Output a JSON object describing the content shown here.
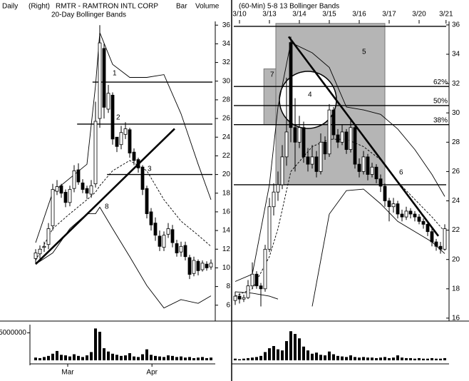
{
  "chart_data": [
    {
      "type": "candlestick",
      "period": "Daily",
      "axis_side": "(Right)",
      "title": "RMTR - RAMTRON INTL CORP",
      "style": "Bar",
      "volume_label": "Volume",
      "subtitle": "20-Day Bollinger Bands",
      "xlim": [
        -1,
        42
      ],
      "xticks": [
        {
          "value": 7.5,
          "label": "Mar"
        },
        {
          "value": 27.2,
          "label": "Apr"
        }
      ],
      "ylim": [
        4.3,
        36.4
      ],
      "yticks": [
        6,
        8,
        10,
        12,
        14,
        16,
        18,
        20,
        22,
        24,
        26,
        28,
        30,
        32,
        34,
        36
      ],
      "open": [
        11,
        11.5,
        12.2,
        12.5,
        14.5,
        18.2,
        18.8,
        18.1,
        17,
        18.5,
        20.5,
        19.1,
        18.5,
        17.9,
        19,
        26,
        33.5,
        27,
        28.5,
        24,
        23.2,
        24.3,
        24.8,
        22.4,
        21.6,
        20.8,
        18.5,
        16,
        14.8,
        13.4,
        12.2,
        13.6,
        14.1,
        12.6,
        11.7,
        12.4,
        11.1,
        9.4,
        10.7,
        9.8,
        10.4,
        10.1
      ],
      "high": [
        12,
        12.4,
        12.8,
        14.8,
        19,
        19.4,
        19,
        18.4,
        18.8,
        21,
        21.2,
        19.5,
        18.8,
        19.4,
        27.8,
        36,
        34,
        29.6,
        28.8,
        24,
        25.2,
        25.6,
        25,
        22.8,
        21.8,
        21,
        18.8,
        16.4,
        15.4,
        14,
        13.9,
        14.8,
        14.6,
        13,
        12.8,
        12.8,
        11.4,
        11.2,
        10.9,
        10.8,
        10.7,
        10.9
      ],
      "low": [
        10.5,
        11,
        11.7,
        12,
        14,
        17.8,
        17.5,
        16.5,
        16.6,
        18.1,
        18.9,
        18,
        17.4,
        17.5,
        18.6,
        25,
        26,
        26.6,
        23.2,
        22.4,
        22.7,
        23.8,
        21.8,
        21,
        20.2,
        17.8,
        15.3,
        14,
        12.9,
        11.8,
        11.8,
        13.2,
        12.2,
        11.2,
        11.2,
        10.8,
        8.8,
        9.1,
        9.2,
        9.6,
        9.7,
        9.8
      ],
      "close": [
        11.6,
        12,
        12.3,
        14.2,
        18.4,
        18.7,
        18,
        17,
        18.4,
        20.4,
        19.2,
        18.4,
        18,
        18.8,
        25.7,
        34.1,
        27.2,
        28.7,
        23.8,
        23,
        24.5,
        24.9,
        22.3,
        21.5,
        20.7,
        18.4,
        15.8,
        14.6,
        13.5,
        12.3,
        13.5,
        14.2,
        12.7,
        11.6,
        12.3,
        11.2,
        9.3,
        10.8,
        9.7,
        10.5,
        10,
        10.5
      ],
      "bands": {
        "x": [
          0,
          4,
          8,
          12,
          14,
          15,
          18,
          22,
          26,
          30,
          34,
          38,
          41
        ],
        "upper": [
          12.7,
          18.1,
          19.6,
          21.1,
          29.5,
          35.2,
          31.8,
          30.4,
          30.4,
          30.7,
          26.5,
          21.1,
          17.3
        ],
        "middle": [
          10.8,
          14.2,
          15.8,
          17.3,
          18.1,
          18.8,
          20.4,
          21.5,
          20.4,
          17.3,
          15,
          13.5,
          12.3
        ],
        "lower": [
          10.4,
          11.6,
          14.2,
          15.8,
          15.8,
          16.5,
          14.2,
          11.2,
          8.1,
          5.7,
          6.6,
          6.2,
          7
        ]
      },
      "volume": {
        "ylim": [
          0,
          6500000
        ],
        "yticks": [
          5000000
        ],
        "values": [
          500000,
          400000,
          600000,
          800000,
          1200000,
          1700000,
          1000000,
          900000,
          700000,
          1100000,
          800000,
          600000,
          900000,
          1500000,
          5800000,
          5200000,
          2200000,
          1600000,
          1200000,
          1000000,
          800000,
          900000,
          1300000,
          700000,
          600000,
          1100000,
          2000000,
          1000000,
          800000,
          700000,
          600000,
          900000,
          800000,
          600000,
          700000,
          500000,
          600000,
          400000,
          500000,
          600000,
          400000,
          500000
        ]
      },
      "hlines": [
        {
          "value": 29.9,
          "start": 13.3,
          "label": "1"
        },
        {
          "value": 25.4,
          "start": 9.7,
          "label": "2"
        },
        {
          "value": 20,
          "start": 16.7,
          "label": "3"
        }
      ],
      "trendlines": [
        {
          "x": [
            0,
            32.5
          ],
          "y": [
            10.4,
            24.9
          ],
          "label": "8"
        }
      ]
    },
    {
      "type": "candlestick",
      "title": "(60-Min) 5-8 13 Bollinger Bands",
      "xlim": [
        -1,
        50
      ],
      "xticks": [
        {
          "value": 1,
          "label": "3/10"
        },
        {
          "value": 8,
          "label": "3/13"
        },
        {
          "value": 15,
          "label": "3/14"
        },
        {
          "value": 22,
          "label": "3/15"
        },
        {
          "value": 29,
          "label": "3/16"
        },
        {
          "value": 36,
          "label": "3/17"
        },
        {
          "value": 43,
          "label": "3/20"
        },
        {
          "value": 49.3,
          "label": "3/21"
        }
      ],
      "ylim": [
        15.8,
        36.24
      ],
      "yticks": [
        16,
        18,
        20,
        22,
        24,
        26,
        28,
        30,
        32,
        34,
        36
      ],
      "open": [
        17.2,
        17.5,
        17.3,
        17.4,
        18.2,
        19,
        18.2,
        18,
        20.7,
        23.6,
        24.6,
        25.1,
        27,
        34.8,
        29,
        28,
        29,
        27,
        26.5,
        27,
        26,
        28,
        27.2,
        30.2,
        28.5,
        28,
        28.7,
        27.5,
        29,
        26.5,
        26,
        27,
        25.8,
        26.3,
        25.5,
        25,
        24,
        23.6,
        23.8,
        23.1,
        22.9,
        23.3,
        23.1,
        22.9,
        22.6,
        22.4,
        21.9,
        21.2,
        20.9,
        20.7
      ],
      "high": [
        17.8,
        17.7,
        17.6,
        18.6,
        19.8,
        19.2,
        18.4,
        21,
        24.2,
        25.2,
        26,
        27.8,
        32.4,
        35.2,
        31,
        29.8,
        29.4,
        27.6,
        27.8,
        27.4,
        28.6,
        28.4,
        30.6,
        30.4,
        28.9,
        29.2,
        28.9,
        29.6,
        29.2,
        26.9,
        27.4,
        27.2,
        26.6,
        26.5,
        25.8,
        25.2,
        24.2,
        24.2,
        24,
        23.4,
        23.6,
        23.5,
        23.3,
        23.1,
        22.8,
        22.6,
        22.1,
        21.4,
        21.2,
        22.4
      ],
      "low": [
        16.9,
        17,
        17.1,
        17.3,
        18,
        18,
        16.8,
        17.8,
        20.5,
        23,
        24,
        24.8,
        26.4,
        28,
        26,
        27.6,
        26.6,
        26,
        26.2,
        25.6,
        25.8,
        26.8,
        27,
        28.2,
        27.6,
        27.8,
        27.2,
        27.3,
        26.2,
        25.6,
        25.8,
        25.4,
        25.6,
        25.2,
        24.6,
        23.6,
        22.6,
        23.2,
        22.8,
        22.6,
        22.7,
        22.8,
        22.6,
        22.4,
        22.1,
        21.6,
        20.9,
        20.6,
        20.4,
        20.6
      ],
      "close": [
        17.5,
        17.3,
        17.4,
        18.2,
        19,
        18.2,
        18,
        20.7,
        23.6,
        24.6,
        25.1,
        27,
        28.7,
        29,
        28,
        29,
        27,
        26.5,
        27,
        26,
        28,
        27.2,
        30.2,
        28.5,
        28,
        28.7,
        27.5,
        29,
        26.5,
        26,
        27,
        25.8,
        26.3,
        25.5,
        25,
        24,
        23.6,
        23.8,
        23.1,
        22.9,
        23.3,
        23.1,
        22.9,
        22.6,
        22.4,
        21.9,
        21.2,
        20.9,
        20.7,
        22.1
      ],
      "bands": {
        "x": [
          0,
          4,
          8,
          10,
          13,
          18,
          22,
          26,
          30,
          34,
          38,
          42,
          46,
          49
        ],
        "upper": [
          18.5,
          19,
          25.1,
          30.4,
          34.8,
          34.1,
          33.1,
          30.4,
          30.2,
          29.9,
          28.9,
          27.5,
          25.8,
          24.3
        ],
        "middle": [
          17.5,
          18,
          20.2,
          22.1,
          26,
          27.7,
          28.2,
          28.2,
          27.7,
          26.8,
          25.3,
          24.1,
          22.9,
          21.9
        ],
        "lower": [
          17.8,
          17.7,
          17.5,
          17.3,
          null,
          16.8,
          23.1,
          24.7,
          24.8,
          23.8,
          22.6,
          21.9,
          21.2,
          20.4
        ]
      },
      "volume": {
        "ylim": [
          0,
          6500000
        ],
        "yticks": [],
        "values": [
          300000,
          200000,
          300000,
          400000,
          500000,
          600000,
          800000,
          1500000,
          2200000,
          2600000,
          2000000,
          1800000,
          3500000,
          5300000,
          4800000,
          4000000,
          2500000,
          1800000,
          1200000,
          1400000,
          1000000,
          900000,
          1600000,
          1100000,
          800000,
          700000,
          600000,
          900000,
          600000,
          500000,
          600000,
          500000,
          500000,
          400000,
          500000,
          600000,
          400000,
          500000,
          900000,
          500000,
          400000,
          400000,
          300000,
          400000,
          300000,
          300000,
          400000,
          300000,
          300000,
          400000
        ]
      },
      "zones": [
        {
          "x": [
            9.5,
            35
          ],
          "y": [
            25.1,
            36.1
          ],
          "label": "5"
        },
        {
          "x": [
            6.7,
            9.5
          ],
          "y": [
            29.2,
            33
          ],
          "label": "7"
        }
      ],
      "highlight": {
        "label": "4"
      },
      "hlines": [
        {
          "value": 35.9
        },
        {
          "value": 25.1
        }
      ],
      "levels": [
        {
          "value": 31.8,
          "label": "62%"
        },
        {
          "value": 30.5,
          "label": "50%"
        },
        {
          "value": 29.2,
          "label": "38%"
        }
      ],
      "trendlines": [
        {
          "x": [
            12.5,
            47.5
          ],
          "y": [
            35.2,
            21.6
          ],
          "label": "6"
        }
      ]
    }
  ]
}
